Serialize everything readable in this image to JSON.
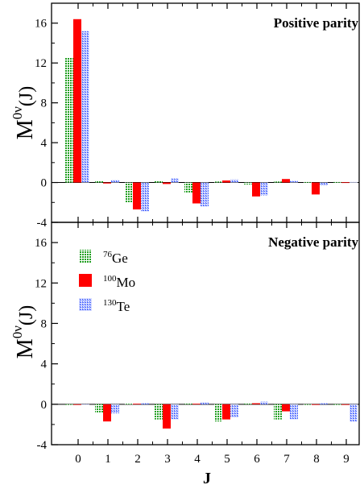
{
  "chart_data": {
    "type": "bar",
    "xlabel": "J",
    "categories": [
      "0",
      "1",
      "2",
      "3",
      "4",
      "5",
      "6",
      "7",
      "8",
      "9"
    ],
    "legend": {
      "placement": "top-left (lower panel)",
      "entries": [
        {
          "mass": "76",
          "element": "Ge",
          "color": "#1f9e1f"
        },
        {
          "mass": "100",
          "element": "Mo",
          "color": "#ff0000"
        },
        {
          "mass": "130",
          "element": "Te",
          "color": "#4f6bff"
        }
      ]
    },
    "ylabel": {
      "base": "M",
      "sup": "0ν",
      "arg": "(J)"
    },
    "panels": [
      {
        "title": "Positive parity",
        "ylim": [
          -4,
          18
        ],
        "yticks": [
          -4,
          0,
          4,
          8,
          12,
          16
        ],
        "series": [
          {
            "name": "76Ge",
            "values": [
              12.5,
              0.15,
              -2.0,
              0.15,
              -1.0,
              0.1,
              -0.2,
              0.1,
              0.05,
              0.05
            ]
          },
          {
            "name": "100Mo",
            "values": [
              16.4,
              -0.1,
              -2.7,
              -0.15,
              -2.1,
              0.2,
              -1.4,
              0.35,
              -1.2,
              0.02
            ]
          },
          {
            "name": "130Te",
            "values": [
              15.2,
              0.25,
              -2.9,
              0.4,
              -2.4,
              0.3,
              -1.3,
              0.15,
              -0.3,
              0.05
            ]
          }
        ]
      },
      {
        "title": "Negative parity",
        "ylim": [
          -4,
          18
        ],
        "yticks": [
          -4,
          0,
          4,
          8,
          12,
          16
        ],
        "series": [
          {
            "name": "76Ge",
            "values": [
              0.0,
              -0.8,
              0.05,
              -1.5,
              0.1,
              -1.7,
              0.1,
              -1.5,
              -0.05,
              0.0
            ]
          },
          {
            "name": "100Mo",
            "values": [
              -0.05,
              -1.7,
              0.05,
              -2.4,
              0.05,
              -1.5,
              0.1,
              -0.7,
              0.0,
              -0.05
            ]
          },
          {
            "name": "130Te",
            "values": [
              0.0,
              -0.9,
              0.1,
              -1.5,
              0.2,
              -1.3,
              0.25,
              -1.5,
              0.1,
              -1.7
            ]
          }
        ]
      }
    ],
    "colors": {
      "ge": "#1f9e1f",
      "mo": "#ff0000",
      "te": "#4f6bff"
    }
  }
}
